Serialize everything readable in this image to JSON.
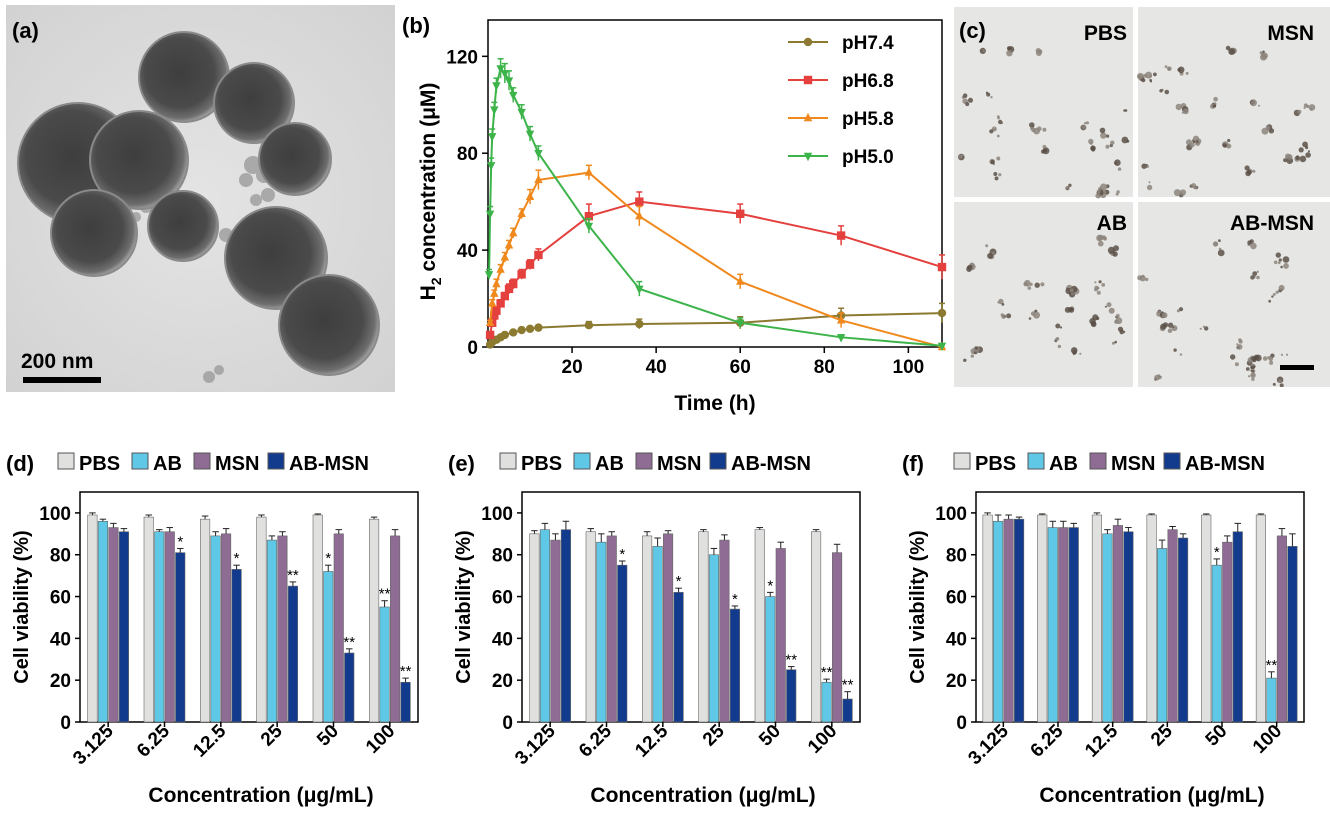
{
  "panels": {
    "a": {
      "label": "(a)",
      "scale_bar": "200 nm"
    },
    "c": {
      "label": "(c)",
      "scale_bar_visible": true,
      "quadrants": [
        "PBS",
        "MSN",
        "AB",
        "AB-MSN"
      ]
    }
  },
  "colors": {
    "PBS": "#e0e0de",
    "AB": "#5ec8e6",
    "MSN": "#8e6c93",
    "AB-MSN": "#123b8e",
    "pH7.4": "#8b7a30",
    "pH6.8": "#e4403d",
    "pH5.8": "#f0891d",
    "pH5.0": "#3cb44a"
  },
  "chart_data": [
    {
      "panel": "(b)",
      "type": "line",
      "xlabel": "Time (h)",
      "ylabel_main": "H",
      "ylabel_sub": "2",
      "ylabel_rest": " concentration (μM)",
      "xlim": [
        0,
        108
      ],
      "ylim": [
        0,
        135
      ],
      "xticks": [
        20,
        40,
        60,
        80,
        100
      ],
      "yticks": [
        0,
        40,
        80,
        120
      ],
      "legend_position": "top-right",
      "series": [
        {
          "name": "pH7.4",
          "marker": "circle",
          "x": [
            0.5,
            1,
            2,
            3,
            4,
            6,
            8,
            10,
            12,
            24,
            36,
            60,
            84,
            108
          ],
          "y": [
            1,
            2,
            3,
            4,
            5,
            6,
            7,
            7.5,
            8,
            9,
            9.5,
            10,
            13,
            14
          ],
          "err": [
            0.5,
            0.5,
            0.5,
            0.5,
            0.5,
            0.5,
            0.5,
            0.5,
            0.5,
            1.5,
            2,
            2.5,
            3,
            4
          ]
        },
        {
          "name": "pH6.8",
          "marker": "square",
          "x": [
            0.5,
            1,
            1.5,
            2,
            3,
            4,
            5,
            6,
            8,
            10,
            12,
            24,
            36,
            60,
            84,
            108
          ],
          "y": [
            5,
            10,
            13,
            15,
            18,
            21,
            24,
            26,
            30,
            34,
            38,
            54,
            60,
            55,
            46,
            33
          ],
          "err": [
            1,
            1,
            1,
            1.5,
            1.5,
            1.5,
            2,
            2,
            2,
            2,
            2.5,
            5,
            4,
            4,
            4,
            5
          ]
        },
        {
          "name": "pH5.8",
          "marker": "triangle-up",
          "x": [
            0.5,
            1,
            1.5,
            2,
            3,
            4,
            5,
            6,
            8,
            10,
            12,
            24,
            36,
            60,
            84,
            108
          ],
          "y": [
            10,
            18,
            22,
            26,
            32,
            37,
            42,
            47,
            55,
            62,
            69,
            72,
            54,
            27,
            11,
            0
          ],
          "err": [
            1,
            1.5,
            1.5,
            2,
            2,
            2,
            2,
            2,
            2,
            3,
            4,
            3,
            4,
            3,
            3,
            1
          ]
        },
        {
          "name": "pH5.0",
          "marker": "triangle-down",
          "x": [
            0.25,
            0.5,
            0.75,
            1,
            1.5,
            2,
            3,
            4,
            5,
            6,
            8,
            10,
            12,
            24,
            36,
            60,
            84,
            108
          ],
          "y": [
            30,
            55,
            75,
            87,
            98,
            108,
            115,
            113,
            110,
            104,
            97,
            88,
            80,
            50,
            24,
            10,
            4,
            0.5
          ],
          "err": [
            2,
            3,
            3,
            3,
            3,
            3,
            4,
            4,
            4,
            3,
            3,
            3,
            3,
            3,
            3,
            2,
            1,
            0.5
          ]
        }
      ]
    },
    {
      "panel": "(d)",
      "type": "bar",
      "xlabel": "Concentration (μg/mL)",
      "ylabel": "Cell viability (%)",
      "ylim": [
        0,
        110
      ],
      "yticks": [
        0,
        20,
        40,
        60,
        80,
        100
      ],
      "categories": [
        "3.125",
        "6.25",
        "12.5",
        "25",
        "50",
        "100"
      ],
      "legend_position": "top",
      "series": [
        {
          "name": "PBS",
          "values": [
            99,
            98,
            97,
            98,
            99,
            97
          ],
          "err": [
            1,
            1,
            1.5,
            1,
            0.5,
            1
          ],
          "sig": [
            "",
            "",
            "",
            "",
            "",
            ""
          ]
        },
        {
          "name": "AB",
          "values": [
            96,
            91,
            89,
            87,
            72,
            55
          ],
          "err": [
            1,
            1,
            2,
            2,
            3,
            3
          ],
          "sig": [
            "",
            "",
            "",
            "",
            "*",
            "**"
          ]
        },
        {
          "name": "MSN",
          "values": [
            93,
            91,
            90,
            89,
            90,
            89
          ],
          "err": [
            2,
            2,
            2.5,
            2,
            2,
            3
          ],
          "sig": [
            "",
            "",
            "",
            "",
            "",
            ""
          ]
        },
        {
          "name": "AB-MSN",
          "values": [
            91,
            81,
            73,
            65,
            33,
            19
          ],
          "err": [
            1.5,
            2,
            2,
            2,
            2,
            2
          ],
          "sig": [
            "",
            "*",
            "*",
            "**",
            "**",
            "**"
          ]
        }
      ]
    },
    {
      "panel": "(e)",
      "type": "bar",
      "xlabel": "Concentration (μg/mL)",
      "ylabel": "Cell viability (%)",
      "ylim": [
        0,
        110
      ],
      "yticks": [
        0,
        20,
        40,
        60,
        80,
        100
      ],
      "categories": [
        "3.125",
        "6.25",
        "12.5",
        "25",
        "50",
        "100"
      ],
      "legend_position": "top",
      "series": [
        {
          "name": "PBS",
          "values": [
            90,
            91,
            89,
            91,
            92,
            91
          ],
          "err": [
            1.5,
            1.5,
            2,
            1,
            1,
            1
          ],
          "sig": [
            "",
            "",
            "",
            "",
            "",
            ""
          ]
        },
        {
          "name": "AB",
          "values": [
            92,
            86,
            84,
            80,
            60,
            19
          ],
          "err": [
            3,
            4,
            4,
            3,
            2,
            1.5
          ],
          "sig": [
            "",
            "",
            "",
            "",
            "*",
            "**"
          ]
        },
        {
          "name": "MSN",
          "values": [
            87,
            89,
            90,
            87,
            83,
            81
          ],
          "err": [
            3,
            2,
            1.5,
            2.5,
            3,
            4
          ],
          "sig": [
            "",
            "",
            "",
            "",
            "",
            ""
          ]
        },
        {
          "name": "AB-MSN",
          "values": [
            92,
            75,
            62,
            54,
            25,
            11
          ],
          "err": [
            4,
            2,
            2,
            1.5,
            1.5,
            3.5
          ],
          "sig": [
            "",
            "*",
            "*",
            "*",
            "**",
            "**"
          ]
        }
      ]
    },
    {
      "panel": "(f)",
      "type": "bar",
      "xlabel": "Concentration (μg/mL)",
      "ylabel": "Cell viability (%)",
      "ylim": [
        0,
        110
      ],
      "yticks": [
        0,
        20,
        40,
        60,
        80,
        100
      ],
      "categories": [
        "3.125",
        "6.25",
        "12.5",
        "25",
        "50",
        "100"
      ],
      "legend_position": "top",
      "series": [
        {
          "name": "PBS",
          "values": [
            99,
            99,
            99,
            99,
            99,
            99
          ],
          "err": [
            1,
            0.5,
            1,
            0.5,
            0.5,
            0.5
          ],
          "sig": [
            "",
            "",
            "",
            "",
            "",
            ""
          ]
        },
        {
          "name": "AB",
          "values": [
            96,
            93,
            90,
            83,
            75,
            21
          ],
          "err": [
            3,
            3,
            2,
            4,
            3,
            3
          ],
          "sig": [
            "",
            "",
            "",
            "",
            "*",
            "**"
          ]
        },
        {
          "name": "MSN",
          "values": [
            97,
            93,
            94,
            92,
            86,
            89
          ],
          "err": [
            2,
            3,
            3,
            1.5,
            3,
            3.5
          ],
          "sig": [
            "",
            "",
            "",
            "",
            "",
            ""
          ]
        },
        {
          "name": "AB-MSN",
          "values": [
            97,
            93,
            91,
            88,
            91,
            84
          ],
          "err": [
            1,
            2,
            2,
            2,
            4,
            6
          ],
          "sig": [
            "",
            "",
            "",
            "",
            "",
            ""
          ]
        }
      ]
    }
  ]
}
